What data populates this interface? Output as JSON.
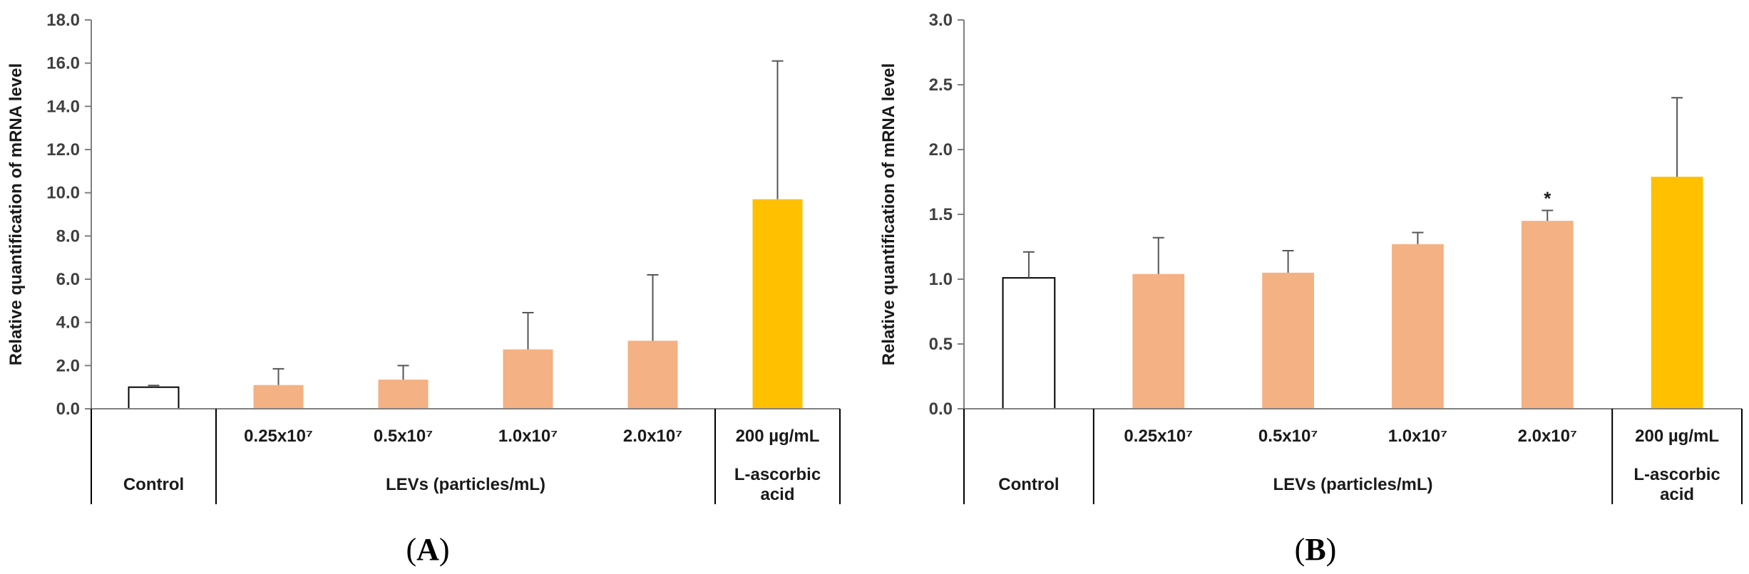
{
  "chart_data": [
    {
      "type": "bar",
      "panel_label": "A",
      "ylabel": "Relative quantification of mRNA level",
      "ylim": [
        0,
        18
      ],
      "yticks": [
        "0.0",
        "2.0",
        "4.0",
        "6.0",
        "8.0",
        "10.0",
        "12.0",
        "14.0",
        "16.0",
        "18.0"
      ],
      "categories": [
        "",
        "0.25x10⁷",
        "0.5x10⁷",
        "1.0x10⁷",
        "2.0x10⁷",
        "200 µg/mL"
      ],
      "groups": [
        {
          "label": "Control",
          "span": [
            0,
            0
          ]
        },
        {
          "label": "LEVs (particles/mL)",
          "span": [
            1,
            4
          ]
        },
        {
          "label": "L-ascorbic acid",
          "span": [
            5,
            5
          ]
        }
      ],
      "values": [
        1.0,
        1.1,
        1.35,
        2.75,
        3.15,
        9.7
      ],
      "errors": [
        0.08,
        0.75,
        0.65,
        1.7,
        3.05,
        6.4
      ],
      "colors": [
        "#ffffff",
        "#f4b183",
        "#f4b183",
        "#f4b183",
        "#f4b183",
        "#ffc000"
      ],
      "annotations": [
        "",
        "",
        "",
        "",
        "",
        ""
      ]
    },
    {
      "type": "bar",
      "panel_label": "B",
      "ylabel": "Relative quantification of mRNA level",
      "ylim": [
        0,
        3
      ],
      "yticks": [
        "0.0",
        "0.5",
        "1.0",
        "1.5",
        "2.0",
        "2.5",
        "3.0"
      ],
      "categories": [
        "",
        "0.25x10⁷",
        "0.5x10⁷",
        "1.0x10⁷",
        "2.0x10⁷",
        "200 µg/mL"
      ],
      "groups": [
        {
          "label": "Control",
          "span": [
            0,
            0
          ]
        },
        {
          "label": "LEVs (particles/mL)",
          "span": [
            1,
            4
          ]
        },
        {
          "label": "L-ascorbic acid",
          "span": [
            5,
            5
          ]
        }
      ],
      "values": [
        1.01,
        1.04,
        1.05,
        1.27,
        1.45,
        1.79
      ],
      "errors": [
        0.2,
        0.28,
        0.17,
        0.09,
        0.08,
        0.61
      ],
      "colors": [
        "#ffffff",
        "#f4b183",
        "#f4b183",
        "#f4b183",
        "#f4b183",
        "#ffc000"
      ],
      "annotations": [
        "",
        "",
        "",
        "",
        "*",
        ""
      ]
    }
  ]
}
